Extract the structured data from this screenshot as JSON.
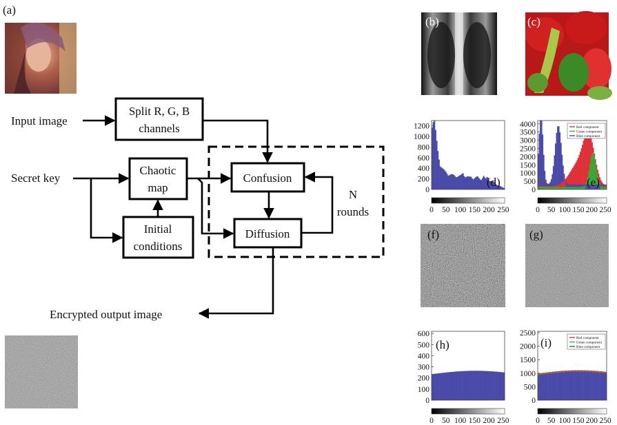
{
  "panel_labels": {
    "a": "(a)",
    "b": "(b)",
    "c": "(c)",
    "d": "(d)",
    "e": "(e)",
    "f": "(f)",
    "g": "(g)",
    "h": "(h)",
    "i": "(i)"
  },
  "flow": {
    "input_image": "Input image",
    "secret_key": "Secret key",
    "split_line1": "Split R, G, B",
    "split_line2": "channels",
    "chaotic_line1": "Chaotic",
    "chaotic_line2": "map",
    "initial_line1": "Initial",
    "initial_line2": "conditions",
    "confusion": "Confusion",
    "diffusion": "Diffusion",
    "rounds_line1": "N",
    "rounds_line2": "rounds",
    "output": "Encrypted output image"
  },
  "histograms": [
    {
      "id": "d",
      "type": "histogram",
      "yticks": [
        "1200",
        "1000",
        "800",
        "600",
        "400",
        "200",
        "0"
      ],
      "ylim": [
        0,
        1300
      ],
      "xticks": [
        "0",
        "50",
        "100",
        "150",
        "200",
        "250"
      ],
      "legend": [],
      "profile": [
        1300,
        1280,
        900,
        620,
        460,
        380,
        330,
        300,
        280,
        270,
        260,
        250,
        245,
        240,
        250,
        300,
        240,
        230,
        220,
        235,
        200,
        210,
        230,
        200,
        190,
        240,
        180,
        250,
        160,
        150,
        130,
        100,
        80,
        60,
        40,
        25
      ]
    },
    {
      "id": "e",
      "type": "histogram",
      "yticks": [
        "4000",
        "3500",
        "3000",
        "2500",
        "2000",
        "1500",
        "1000",
        "500",
        "0"
      ],
      "ylim": [
        0,
        4200
      ],
      "xticks": [
        "0",
        "50",
        "100",
        "150",
        "200",
        "250"
      ],
      "legend": [
        "Red component",
        "Green component",
        "Blue component"
      ],
      "colors": [
        "#e0303a",
        "#33b033",
        "#4a4aa8"
      ]
    },
    {
      "id": "h",
      "type": "histogram",
      "yticks": [
        "600",
        "500",
        "400",
        "300",
        "200",
        "100",
        "0"
      ],
      "ylim": [
        0,
        620
      ],
      "xticks": [
        "0",
        "50",
        "100",
        "150",
        "200",
        "250"
      ],
      "legend": [],
      "flat": 250
    },
    {
      "id": "i",
      "type": "histogram",
      "yticks": [
        "2500",
        "2000",
        "1500",
        "1000",
        "500",
        "0"
      ],
      "ylim": [
        0,
        2550
      ],
      "xticks": [
        "0",
        "50",
        "100",
        "150",
        "200",
        "250"
      ],
      "legend": [
        "Red component",
        "Green component",
        "Blue component"
      ],
      "colors": [
        "#e0303a",
        "#33b033",
        "#4a4aa8"
      ],
      "flat": 1000
    }
  ],
  "colors": {
    "hist_blue": "#4a4aa8",
    "hist_red": "#e0303a",
    "hist_green": "#33b033"
  }
}
